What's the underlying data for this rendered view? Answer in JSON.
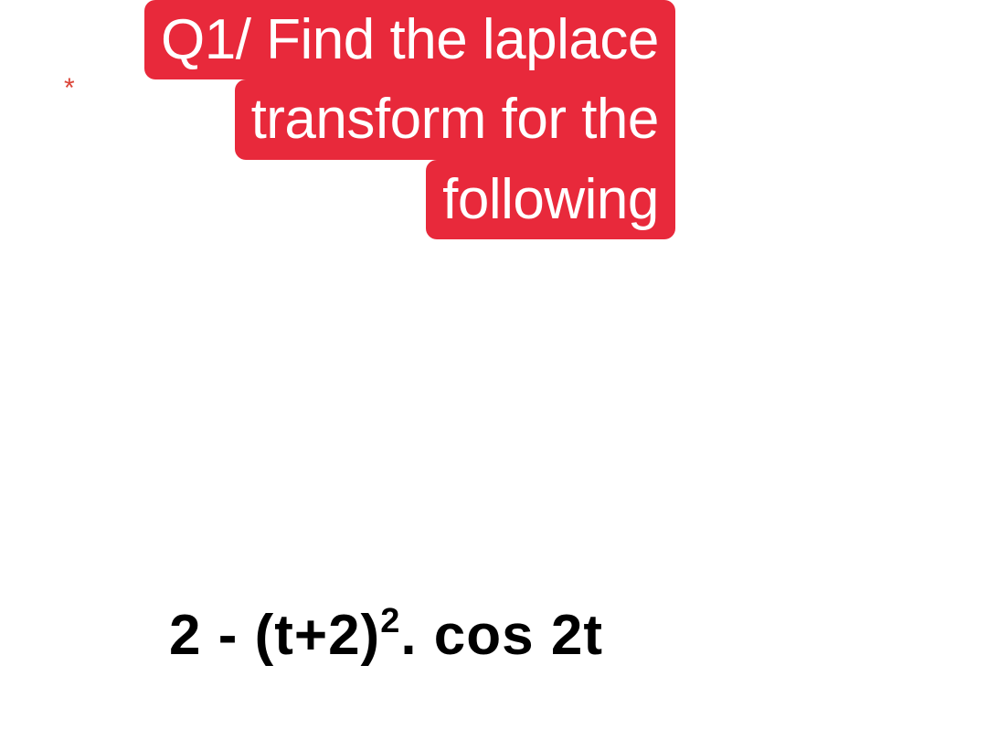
{
  "marker": {
    "asterisk": "*",
    "color": "#db4437"
  },
  "question": {
    "line1": "Q1/ Find the laplace",
    "line2": "transform for the",
    "line3": "following",
    "highlight_color": "#e8293b",
    "text_color": "#ffffff",
    "fontsize": 62
  },
  "formula": {
    "prefix": "2 - (t+2)",
    "exponent": "2",
    "suffix": ". cos 2t",
    "color": "#000000",
    "fontsize": 62,
    "font_weight": "bold"
  },
  "background_color": "#ffffff"
}
